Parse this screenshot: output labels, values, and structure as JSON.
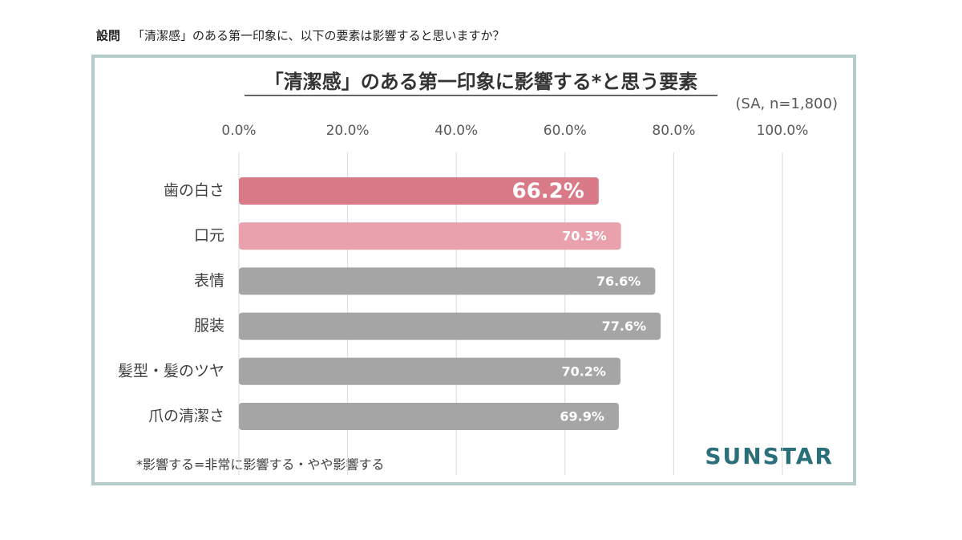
{
  "question": {
    "label": "設問",
    "text": "「清潔感」のある第一印象に、以下の要素は影響すると思いますか？"
  },
  "logo": "SUNSTAR",
  "chart_data": {
    "type": "bar",
    "orientation": "horizontal",
    "title": "「清潔感」のある第一印象に影響する*と思う要素",
    "subtitle": "(SA, n=1,800)",
    "categories": [
      "歯の白さ",
      "口元",
      "表情",
      "服装",
      "髪型・髪のツヤ",
      "爪の清潔さ"
    ],
    "values": [
      66.2,
      70.3,
      76.6,
      77.6,
      70.2,
      69.9
    ],
    "value_labels": [
      "66.2%",
      "70.3%",
      "76.6%",
      "77.6%",
      "70.2%",
      "69.9%"
    ],
    "colors": [
      "#d87a87",
      "#e8a1ad",
      "#a5a5a5",
      "#a5a5a5",
      "#a5a5a5",
      "#a5a5a5"
    ],
    "xlim": [
      0,
      100
    ],
    "xticks": [
      {
        "value": 0,
        "label": "0.0%"
      },
      {
        "value": 20,
        "label": "20.0%"
      },
      {
        "value": 40,
        "label": "40.0%"
      },
      {
        "value": 60,
        "label": "60.0%"
      },
      {
        "value": 80,
        "label": "80.0%"
      },
      {
        "value": 100,
        "label": "100.0%"
      }
    ],
    "grid": true,
    "note": "*影響する=非常に影響する・やや影響する"
  }
}
